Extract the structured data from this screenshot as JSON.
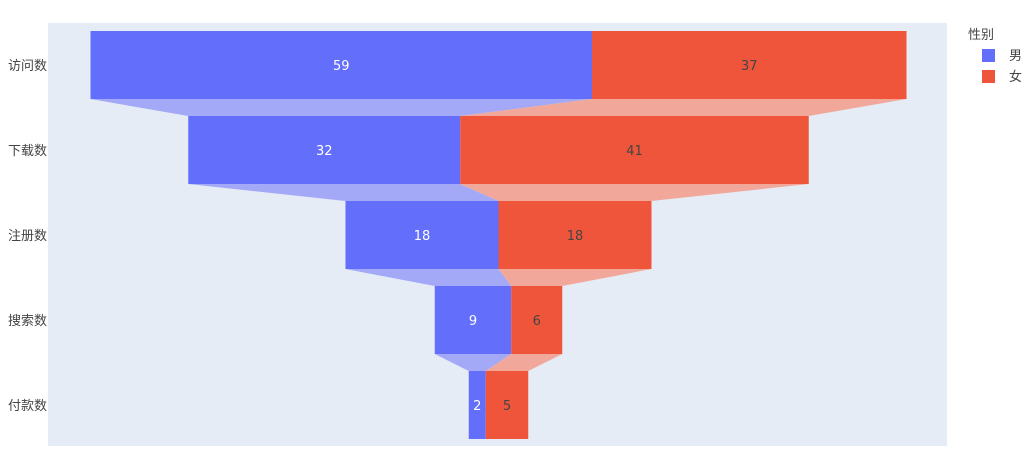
{
  "chart_data": {
    "type": "funnel",
    "categories": [
      "访问数",
      "下载数",
      "注册数",
      "搜索数",
      "付款数"
    ],
    "series": [
      {
        "name": "男",
        "values": [
          59,
          32,
          18,
          9,
          2
        ],
        "color": "#636efa",
        "label_color": "#ffffff"
      },
      {
        "name": "女",
        "values": [
          37,
          41,
          18,
          6,
          5
        ],
        "color": "#ef553b",
        "label_color": "#444444"
      }
    ],
    "legend": {
      "title": "性别",
      "placement": "right"
    },
    "plot_background": "#e5ecf6",
    "connector_colors": [
      "#a3a8f7",
      "#f1a89a"
    ],
    "xlabel": "",
    "ylabel": ""
  }
}
